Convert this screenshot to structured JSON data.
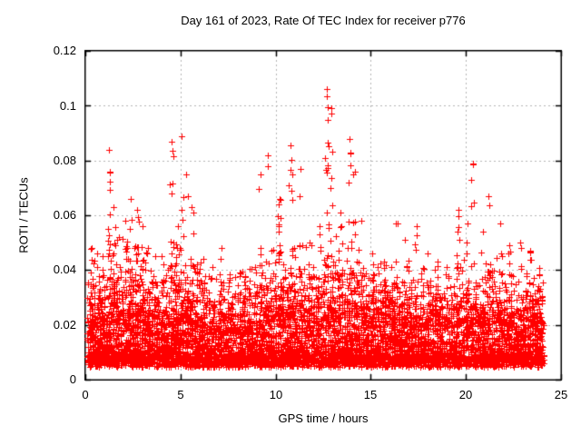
{
  "chart_data": {
    "type": "scatter",
    "title": "Day 161 of 2023, Rate Of TEC Index for receiver p776",
    "xlabel": "GPS time / hours",
    "ylabel": "ROTI / TECUs",
    "xlim": [
      0,
      25
    ],
    "ylim": [
      0,
      0.12
    ],
    "xticks": [
      0,
      5,
      10,
      15,
      20,
      25
    ],
    "yticks": [
      0,
      0.02,
      0.04,
      0.06,
      0.08,
      0.1,
      0.12
    ],
    "xtick_labels": [
      "0",
      "5",
      "10",
      "15",
      "20",
      "25"
    ],
    "ytick_labels": [
      "0",
      "0.02",
      "0.04",
      "0.06",
      "0.08",
      "0.1",
      "0.12"
    ],
    "grid": true,
    "legend": "none",
    "series_name": "ROTI",
    "marker": {
      "glyph": "plus",
      "size": 7,
      "color": "#ff0000"
    },
    "colors": {
      "marker": "#ff0000",
      "grid": "#b4b4b4",
      "axis": "#000000",
      "background": "#ffffff"
    },
    "time_span": [
      0.1,
      24.1
    ],
    "seed": 20230161,
    "baseline_band": {
      "floor": 0.0045,
      "count": 6500,
      "mid_count": 900,
      "envelope": [
        [
          0,
          0.026
        ],
        [
          0.8,
          0.03
        ],
        [
          1.5,
          0.033
        ],
        [
          2.5,
          0.032
        ],
        [
          3.5,
          0.028
        ],
        [
          4.5,
          0.03
        ],
        [
          5.5,
          0.03
        ],
        [
          6.5,
          0.025
        ],
        [
          7.5,
          0.024
        ],
        [
          8.5,
          0.025
        ],
        [
          9.5,
          0.028
        ],
        [
          10.3,
          0.034
        ],
        [
          11,
          0.032
        ],
        [
          12,
          0.029
        ],
        [
          13,
          0.033
        ],
        [
          14,
          0.032
        ],
        [
          15,
          0.027
        ],
        [
          16,
          0.029
        ],
        [
          17,
          0.028
        ],
        [
          18,
          0.026
        ],
        [
          19,
          0.027
        ],
        [
          20,
          0.03
        ],
        [
          21,
          0.029
        ],
        [
          22,
          0.028
        ],
        [
          23,
          0.026
        ],
        [
          23.9,
          0.03
        ],
        [
          24.1,
          0.028
        ]
      ]
    },
    "spikes": [
      [
        0.35,
        0.048,
        7
      ],
      [
        0.6,
        0.046,
        6
      ],
      [
        0.9,
        0.04,
        6
      ],
      [
        1.25,
        0.084,
        26
      ],
      [
        1.5,
        0.063,
        14
      ],
      [
        1.75,
        0.052,
        9
      ],
      [
        2.1,
        0.058,
        12
      ],
      [
        2.4,
        0.066,
        18
      ],
      [
        2.7,
        0.062,
        16
      ],
      [
        3.0,
        0.056,
        12
      ],
      [
        3.3,
        0.048,
        9
      ],
      [
        3.65,
        0.045,
        7
      ],
      [
        4.1,
        0.042,
        7
      ],
      [
        4.55,
        0.087,
        20
      ],
      [
        4.85,
        0.056,
        9
      ],
      [
        5.05,
        0.089,
        16
      ],
      [
        5.3,
        0.075,
        11
      ],
      [
        5.6,
        0.063,
        9
      ],
      [
        6.2,
        0.044,
        7
      ],
      [
        6.7,
        0.041,
        7
      ],
      [
        7.15,
        0.048,
        9
      ],
      [
        7.6,
        0.037,
        6
      ],
      [
        8.1,
        0.039,
        7
      ],
      [
        8.65,
        0.036,
        6
      ],
      [
        9.2,
        0.075,
        11
      ],
      [
        9.6,
        0.082,
        9
      ],
      [
        10.2,
        0.066,
        22
      ],
      [
        10.8,
        0.0856,
        18
      ],
      [
        11.3,
        0.077,
        13
      ],
      [
        11.8,
        0.05,
        9
      ],
      [
        12.3,
        0.056,
        9
      ],
      [
        12.7,
        0.106,
        22
      ],
      [
        12.95,
        0.099,
        13
      ],
      [
        13.4,
        0.061,
        9
      ],
      [
        13.9,
        0.088,
        16
      ],
      [
        14.15,
        0.076,
        9
      ],
      [
        14.5,
        0.058,
        9
      ],
      [
        15.1,
        0.046,
        7
      ],
      [
        15.7,
        0.043,
        7
      ],
      [
        16.3,
        0.057,
        11
      ],
      [
        16.8,
        0.051,
        7
      ],
      [
        17.4,
        0.056,
        9
      ],
      [
        18.0,
        0.046,
        7
      ],
      [
        18.5,
        0.043,
        7
      ],
      [
        19.0,
        0.041,
        7
      ],
      [
        19.6,
        0.062,
        12
      ],
      [
        20.1,
        0.057,
        11
      ],
      [
        20.35,
        0.079,
        7
      ],
      [
        20.9,
        0.054,
        7
      ],
      [
        21.2,
        0.067,
        6
      ],
      [
        21.8,
        0.057,
        11
      ],
      [
        22.3,
        0.049,
        9
      ],
      [
        22.85,
        0.05,
        7
      ],
      [
        23.4,
        0.047,
        11
      ],
      [
        23.9,
        0.033,
        9
      ]
    ],
    "peak_points": [
      [
        12.7,
        0.106
      ],
      [
        12.68,
        0.1035
      ],
      [
        12.72,
        0.0995
      ],
      [
        5.05,
        0.089
      ],
      [
        13.9,
        0.088
      ],
      [
        4.55,
        0.087
      ],
      [
        4.57,
        0.0835
      ],
      [
        10.8,
        0.0856
      ],
      [
        1.25,
        0.0838
      ],
      [
        9.6,
        0.082
      ],
      [
        20.35,
        0.0785
      ],
      [
        11.3,
        0.077
      ],
      [
        1.27,
        0.0755
      ],
      [
        13.92,
        0.083
      ]
    ]
  }
}
